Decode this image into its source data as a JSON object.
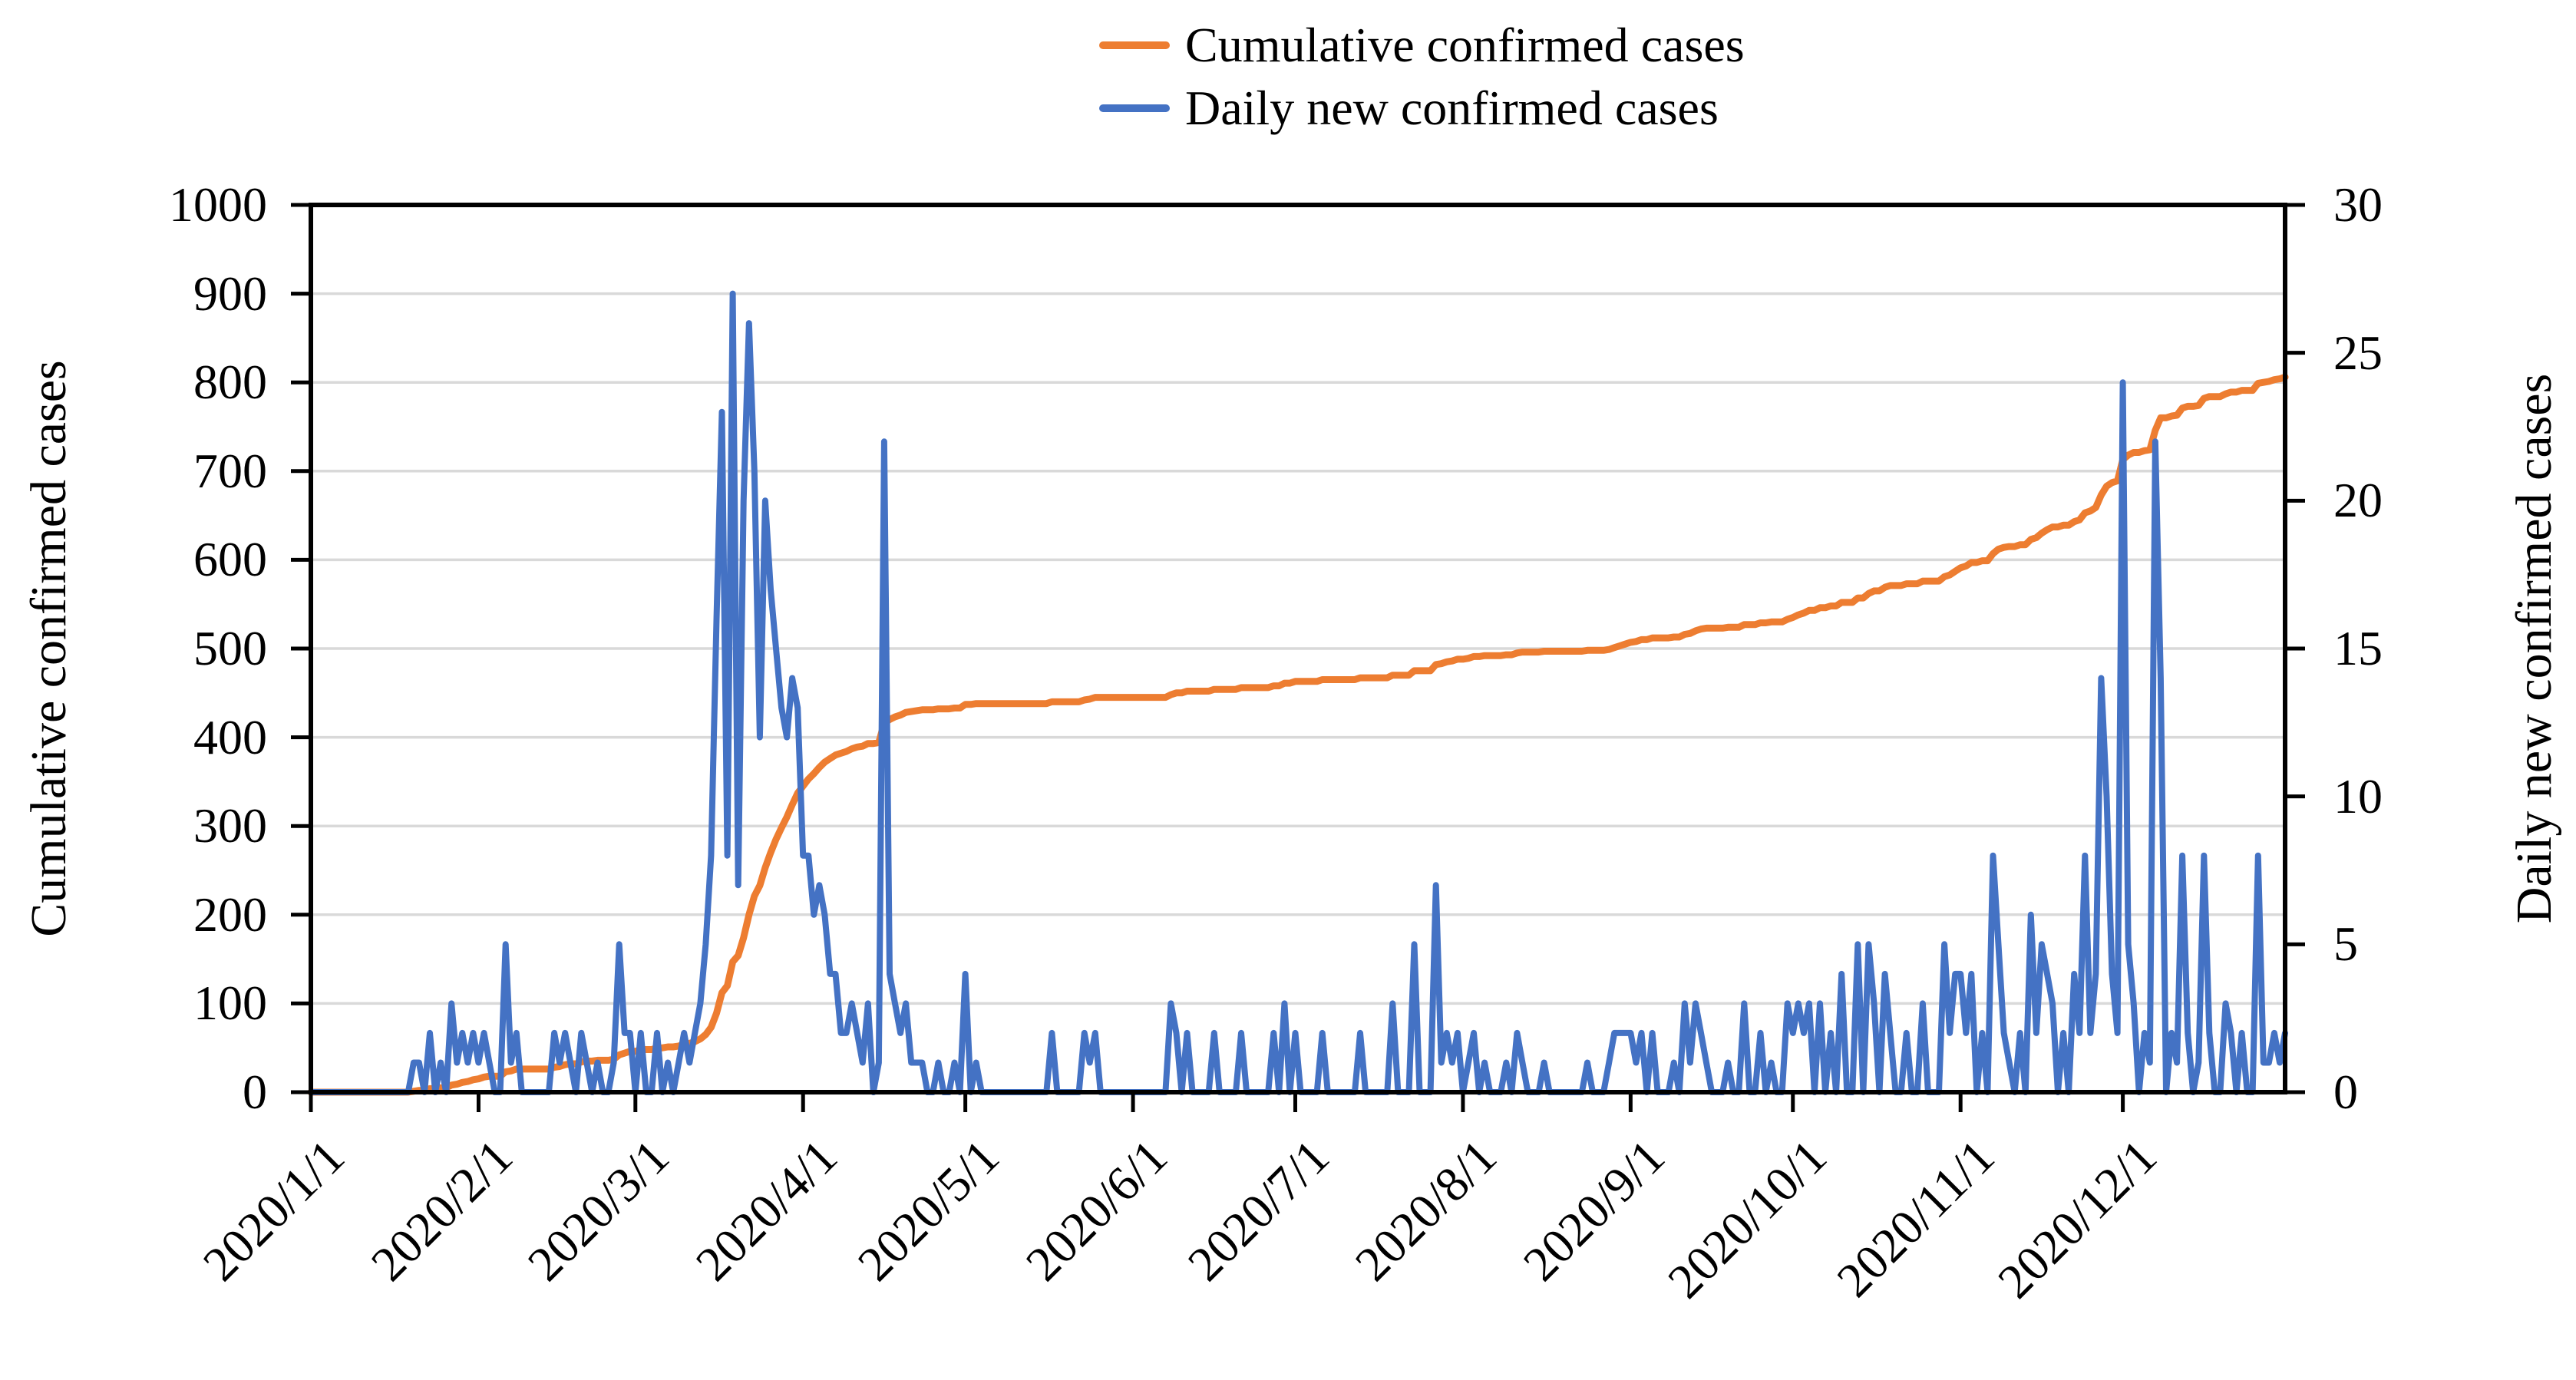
{
  "legend": {
    "items": [
      {
        "label": "Cumulative confirmed cases",
        "color": "#ED7D31"
      },
      {
        "label": "Daily new confirmed cases",
        "color": "#4472C4"
      }
    ]
  },
  "left_axis": {
    "title": "Cumulative confirmed cases",
    "min": 0,
    "max": 1000,
    "step": 100,
    "tick_labels": [
      "0",
      "100",
      "200",
      "300",
      "400",
      "500",
      "600",
      "700",
      "800",
      "900",
      "1000"
    ]
  },
  "right_axis": {
    "title": "Daily new confirmed cases",
    "min": 0,
    "max": 30,
    "step": 5,
    "tick_labels": [
      "0",
      "5",
      "10",
      "15",
      "20",
      "25",
      "30"
    ]
  },
  "x_axis": {
    "labels": [
      "2020/1/1",
      "2020/2/1",
      "2020/3/1",
      "2020/4/1",
      "2020/5/1",
      "2020/6/1",
      "2020/7/1",
      "2020/8/1",
      "2020/9/1",
      "2020/10/1",
      "2020/11/1",
      "2020/12/1"
    ]
  },
  "chart_data": {
    "type": "line",
    "x_start": "2020/1/1",
    "x_end": "2020/12/31",
    "points": 366,
    "month_start_day_offsets": [
      0,
      31,
      60,
      91,
      121,
      152,
      182,
      213,
      244,
      274,
      305,
      335
    ],
    "left_range": [
      0,
      1000
    ],
    "right_range": [
      0,
      30
    ],
    "grid": "horizontal, every 100 left-axis units",
    "legend_position": "top-center",
    "colors": {
      "grid": "#D9D9D9",
      "axis": "#000000",
      "background": "#FFFFFF"
    },
    "series": [
      {
        "name": "Cumulative confirmed cases",
        "axis": "left",
        "color": "#ED7D31",
        "values": [
          0,
          0,
          0,
          0,
          0,
          0,
          0,
          0,
          0,
          0,
          0,
          0,
          0,
          0,
          0,
          0,
          0,
          0,
          0,
          1,
          2,
          2,
          4,
          4,
          5,
          5,
          8,
          9,
          11,
          12,
          14,
          15,
          17,
          18,
          18,
          18,
          23,
          24,
          26,
          26,
          26,
          26,
          26,
          26,
          26,
          28,
          29,
          31,
          32,
          32,
          34,
          35,
          35,
          36,
          36,
          36,
          37,
          42,
          44,
          46,
          46,
          48,
          48,
          48,
          50,
          50,
          51,
          51,
          52,
          54,
          55,
          57,
          60,
          65,
          73,
          89,
          112,
          120,
          147,
          154,
          174,
          200,
          221,
          233,
          253,
          270,
          285,
          298,
          310,
          324,
          337,
          345,
          353,
          359,
          366,
          372,
          376,
          380,
          382,
          384,
          387,
          389,
          390,
          393,
          393,
          394,
          416,
          420,
          423,
          425,
          428,
          429,
          430,
          431,
          431,
          431,
          432,
          432,
          432,
          433,
          433,
          437,
          437,
          438,
          438,
          438,
          438,
          438,
          438,
          438,
          438,
          438,
          438,
          438,
          438,
          438,
          438,
          440,
          440,
          440,
          440,
          440,
          440,
          442,
          443,
          445,
          445,
          445,
          445,
          445,
          445,
          445,
          445,
          445,
          445,
          445,
          445,
          445,
          445,
          448,
          450,
          450,
          452,
          452,
          452,
          452,
          452,
          454,
          454,
          454,
          454,
          454,
          456,
          456,
          456,
          456,
          456,
          456,
          458,
          458,
          461,
          461,
          463,
          463,
          463,
          463,
          463,
          465,
          465,
          465,
          465,
          465,
          465,
          465,
          467,
          467,
          467,
          467,
          467,
          467,
          470,
          470,
          470,
          470,
          475,
          475,
          475,
          475,
          482,
          483,
          485,
          486,
          488,
          488,
          489,
          491,
          491,
          492,
          492,
          492,
          492,
          493,
          493,
          495,
          496,
          496,
          496,
          496,
          497,
          497,
          497,
          497,
          497,
          497,
          497,
          497,
          498,
          498,
          498,
          498,
          499,
          501,
          503,
          505,
          507,
          508,
          510,
          510,
          512,
          512,
          512,
          512,
          513,
          513,
          516,
          517,
          520,
          522,
          523,
          523,
          523,
          523,
          524,
          524,
          524,
          527,
          527,
          527,
          529,
          529,
          530,
          530,
          530,
          533,
          535,
          538,
          540,
          543,
          543,
          546,
          546,
          548,
          548,
          552,
          552,
          552,
          557,
          557,
          562,
          565,
          565,
          569,
          571,
          571,
          571,
          573,
          573,
          573,
          576,
          576,
          576,
          576,
          581,
          583,
          587,
          591,
          593,
          597,
          597,
          599,
          599,
          607,
          612,
          614,
          615,
          615,
          617,
          617,
          623,
          625,
          630,
          634,
          637,
          637,
          639,
          639,
          643,
          645,
          653,
          655,
          659,
          673,
          683,
          687,
          689,
          713,
          718,
          721,
          721,
          723,
          724,
          746,
          760,
          760,
          762,
          763,
          771,
          773,
          773,
          774,
          782,
          784,
          784,
          784,
          787,
          789,
          789,
          791,
          791,
          791,
          799,
          800,
          801,
          803,
          804,
          806
        ]
      },
      {
        "name": "Daily new confirmed cases",
        "axis": "right",
        "color": "#4472C4",
        "values": [
          0,
          0,
          0,
          0,
          0,
          0,
          0,
          0,
          0,
          0,
          0,
          0,
          0,
          0,
          0,
          0,
          0,
          0,
          0,
          1,
          1,
          0,
          2,
          0,
          1,
          0,
          3,
          1,
          2,
          1,
          2,
          1,
          2,
          1,
          0,
          0,
          5,
          1,
          2,
          0,
          0,
          0,
          0,
          0,
          0,
          2,
          1,
          2,
          1,
          0,
          2,
          1,
          0,
          1,
          0,
          0,
          1,
          5,
          2,
          2,
          0,
          2,
          0,
          0,
          2,
          0,
          1,
          0,
          1,
          2,
          1,
          2,
          3,
          5,
          8,
          16,
          23,
          8,
          27,
          7,
          20,
          26,
          21,
          12,
          20,
          17,
          15,
          13,
          12,
          14,
          13,
          8,
          8,
          6,
          7,
          6,
          4,
          4,
          2,
          2,
          3,
          2,
          1,
          3,
          0,
          1,
          22,
          4,
          3,
          2,
          3,
          1,
          1,
          1,
          0,
          0,
          1,
          0,
          0,
          1,
          0,
          4,
          0,
          1,
          0,
          0,
          0,
          0,
          0,
          0,
          0,
          0,
          0,
          0,
          0,
          0,
          0,
          2,
          0,
          0,
          0,
          0,
          0,
          2,
          1,
          2,
          0,
          0,
          0,
          0,
          0,
          0,
          0,
          0,
          0,
          0,
          0,
          0,
          0,
          3,
          2,
          0,
          2,
          0,
          0,
          0,
          0,
          2,
          0,
          0,
          0,
          0,
          2,
          0,
          0,
          0,
          0,
          0,
          2,
          0,
          3,
          0,
          2,
          0,
          0,
          0,
          0,
          2,
          0,
          0,
          0,
          0,
          0,
          0,
          2,
          0,
          0,
          0,
          0,
          0,
          3,
          0,
          0,
          0,
          5,
          0,
          0,
          0,
          7,
          1,
          2,
          1,
          2,
          0,
          1,
          2,
          0,
          1,
          0,
          0,
          0,
          1,
          0,
          2,
          1,
          0,
          0,
          0,
          1,
          0,
          0,
          0,
          0,
          0,
          0,
          0,
          1,
          0,
          0,
          0,
          1,
          2,
          2,
          2,
          2,
          1,
          2,
          0,
          2,
          0,
          0,
          0,
          1,
          0,
          3,
          1,
          3,
          2,
          1,
          0,
          0,
          0,
          1,
          0,
          0,
          3,
          0,
          0,
          2,
          0,
          1,
          0,
          0,
          3,
          2,
          3,
          2,
          3,
          0,
          3,
          0,
          2,
          0,
          4,
          0,
          0,
          5,
          0,
          5,
          3,
          0,
          4,
          2,
          0,
          0,
          2,
          0,
          0,
          3,
          0,
          0,
          0,
          5,
          2,
          4,
          4,
          2,
          4,
          0,
          2,
          0,
          8,
          5,
          2,
          1,
          0,
          2,
          0,
          6,
          2,
          5,
          4,
          3,
          0,
          2,
          0,
          4,
          2,
          8,
          2,
          4,
          14,
          10,
          4,
          2,
          24,
          5,
          3,
          0,
          2,
          1,
          22,
          14,
          0,
          2,
          1,
          8,
          2,
          0,
          1,
          8,
          2,
          0,
          0,
          3,
          2,
          0,
          2,
          0,
          0,
          8,
          1,
          1,
          2,
          1,
          2
        ]
      }
    ]
  }
}
